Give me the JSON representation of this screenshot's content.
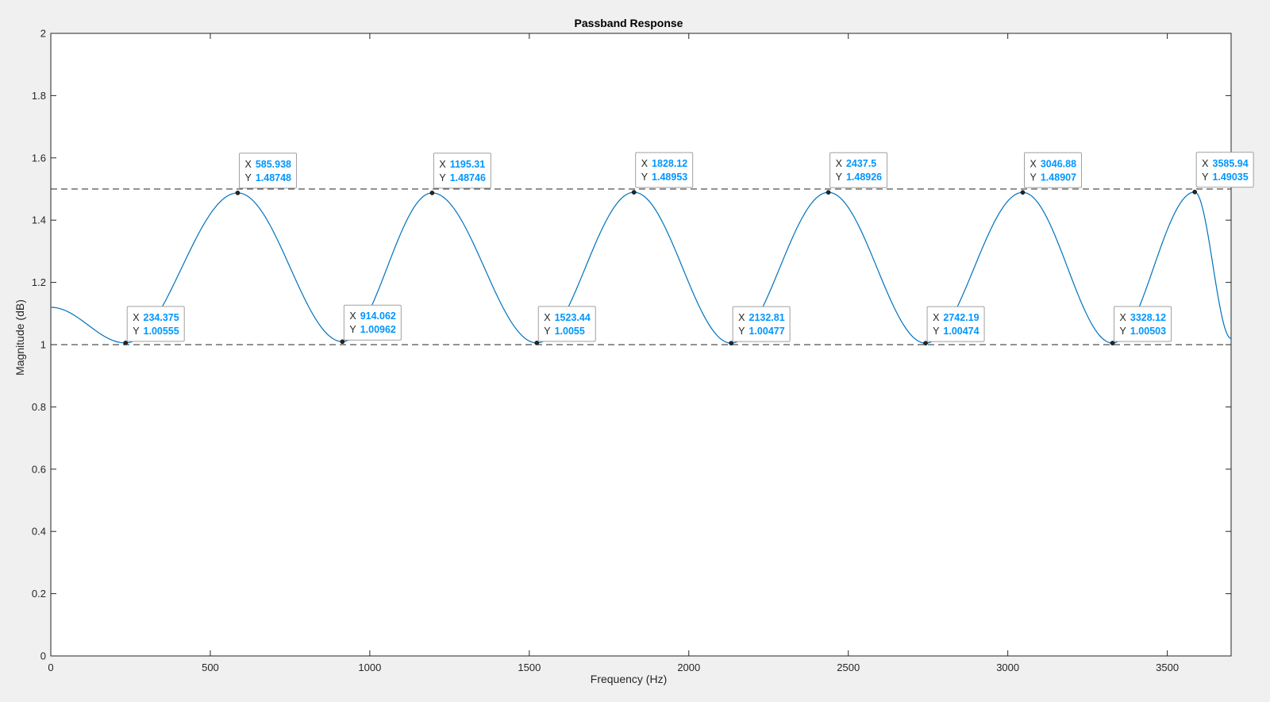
{
  "chart_data": {
    "type": "line",
    "title": "Passband Response",
    "xlabel": "Frequency (Hz)",
    "ylabel": "Magnitude (dB)",
    "xlim": [
      0,
      3700
    ],
    "ylim": [
      0,
      2
    ],
    "xticks": [
      0,
      500,
      1000,
      1500,
      2000,
      2500,
      3000,
      3500
    ],
    "yticks": [
      0,
      0.2,
      0.4,
      0.6,
      0.8,
      1,
      1.2,
      1.4,
      1.6,
      1.8,
      2
    ],
    "grid": false,
    "series_color": "#0072bd",
    "reference_lines": [
      1.0,
      1.5
    ],
    "curve_start": {
      "x": 0,
      "y": 1.12
    },
    "curve_end": {
      "x": 3700,
      "y": 1.02
    },
    "extrema": [
      {
        "x": 234.375,
        "y": 1.00555
      },
      {
        "x": 585.938,
        "y": 1.48748
      },
      {
        "x": 914.062,
        "y": 1.00962
      },
      {
        "x": 1195.31,
        "y": 1.48746
      },
      {
        "x": 1523.44,
        "y": 1.0055
      },
      {
        "x": 1828.12,
        "y": 1.48953
      },
      {
        "x": 2132.81,
        "y": 1.00477
      },
      {
        "x": 2437.5,
        "y": 1.48926
      },
      {
        "x": 2742.19,
        "y": 1.00474
      },
      {
        "x": 3046.88,
        "y": 1.48907
      },
      {
        "x": 3328.12,
        "y": 1.00503
      },
      {
        "x": 3585.94,
        "y": 1.49035
      }
    ],
    "datatips": [
      {
        "x_label": "X",
        "y_label": "Y",
        "x_text": "234.375",
        "y_text": "1.00555"
      },
      {
        "x_label": "X",
        "y_label": "Y",
        "x_text": "585.938",
        "y_text": "1.48748"
      },
      {
        "x_label": "X",
        "y_label": "Y",
        "x_text": "914.062",
        "y_text": "1.00962"
      },
      {
        "x_label": "X",
        "y_label": "Y",
        "x_text": "1195.31",
        "y_text": "1.48746"
      },
      {
        "x_label": "X",
        "y_label": "Y",
        "x_text": "1523.44",
        "y_text": "1.0055"
      },
      {
        "x_label": "X",
        "y_label": "Y",
        "x_text": "1828.12",
        "y_text": "1.48953"
      },
      {
        "x_label": "X",
        "y_label": "Y",
        "x_text": "2132.81",
        "y_text": "1.00477"
      },
      {
        "x_label": "X",
        "y_label": "Y",
        "x_text": "2437.5",
        "y_text": "1.48926"
      },
      {
        "x_label": "X",
        "y_label": "Y",
        "x_text": "2742.19",
        "y_text": "1.00474"
      },
      {
        "x_label": "X",
        "y_label": "Y",
        "x_text": "3046.88",
        "y_text": "1.48907"
      },
      {
        "x_label": "X",
        "y_label": "Y",
        "x_text": "3328.12",
        "y_text": "1.00503"
      },
      {
        "x_label": "X",
        "y_label": "Y",
        "x_text": "3585.94",
        "y_text": "1.49035"
      }
    ]
  }
}
